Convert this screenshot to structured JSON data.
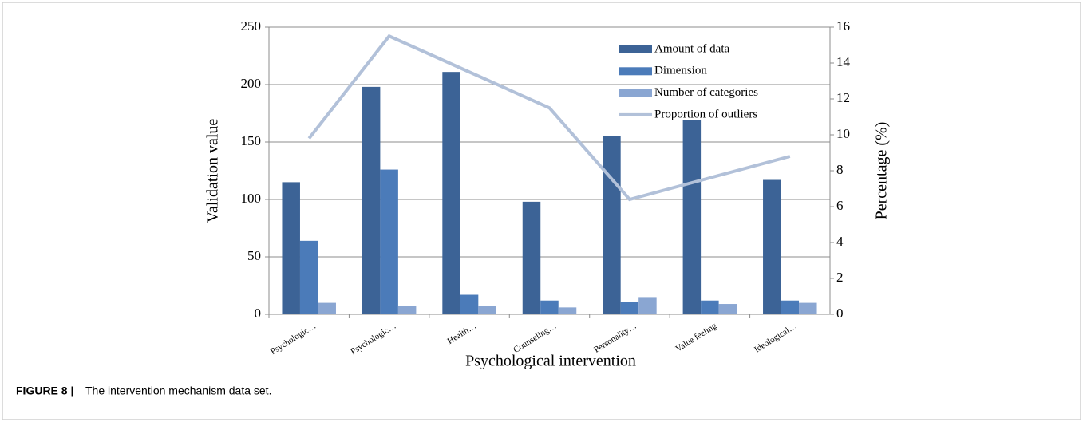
{
  "chart_data": {
    "type": "bar_line",
    "categories": [
      "Psychologic…",
      "Psychologic…",
      "Health…",
      "Counseling…",
      "Personality…",
      "Value feeling",
      "Ideological…"
    ],
    "series": [
      {
        "name": "Amount of data",
        "color": "#3c6396",
        "values": [
          115,
          198,
          211,
          98,
          155,
          169,
          117
        ]
      },
      {
        "name": "Dimension",
        "color": "#4b7bb9",
        "values": [
          64,
          126,
          17,
          12,
          11,
          12,
          12
        ]
      },
      {
        "name": "Number of categories",
        "color": "#8aa6d2",
        "values": [
          10,
          7,
          7,
          6,
          15,
          9,
          10
        ]
      },
      {
        "name": "Proportion of outliers",
        "color": "#b2c1d9",
        "axis": "y2",
        "values": [
          9.8,
          15.5,
          13.5,
          11.5,
          6.4,
          7.6,
          8.8
        ]
      }
    ],
    "xlabel": "Psychological intervention",
    "ylabel": "Validation value",
    "y2label": "Percentage (%)",
    "ylim": [
      0,
      250
    ],
    "yticks": [
      0,
      50,
      100,
      150,
      200,
      250
    ],
    "y2lim": [
      0,
      16
    ],
    "y2ticks": [
      0,
      2,
      4,
      6,
      8,
      10,
      12,
      14,
      16
    ],
    "grid": true,
    "legend": "upper right"
  },
  "caption_label": "FIGURE 8 |",
  "caption": "The intervention mechanism data set."
}
